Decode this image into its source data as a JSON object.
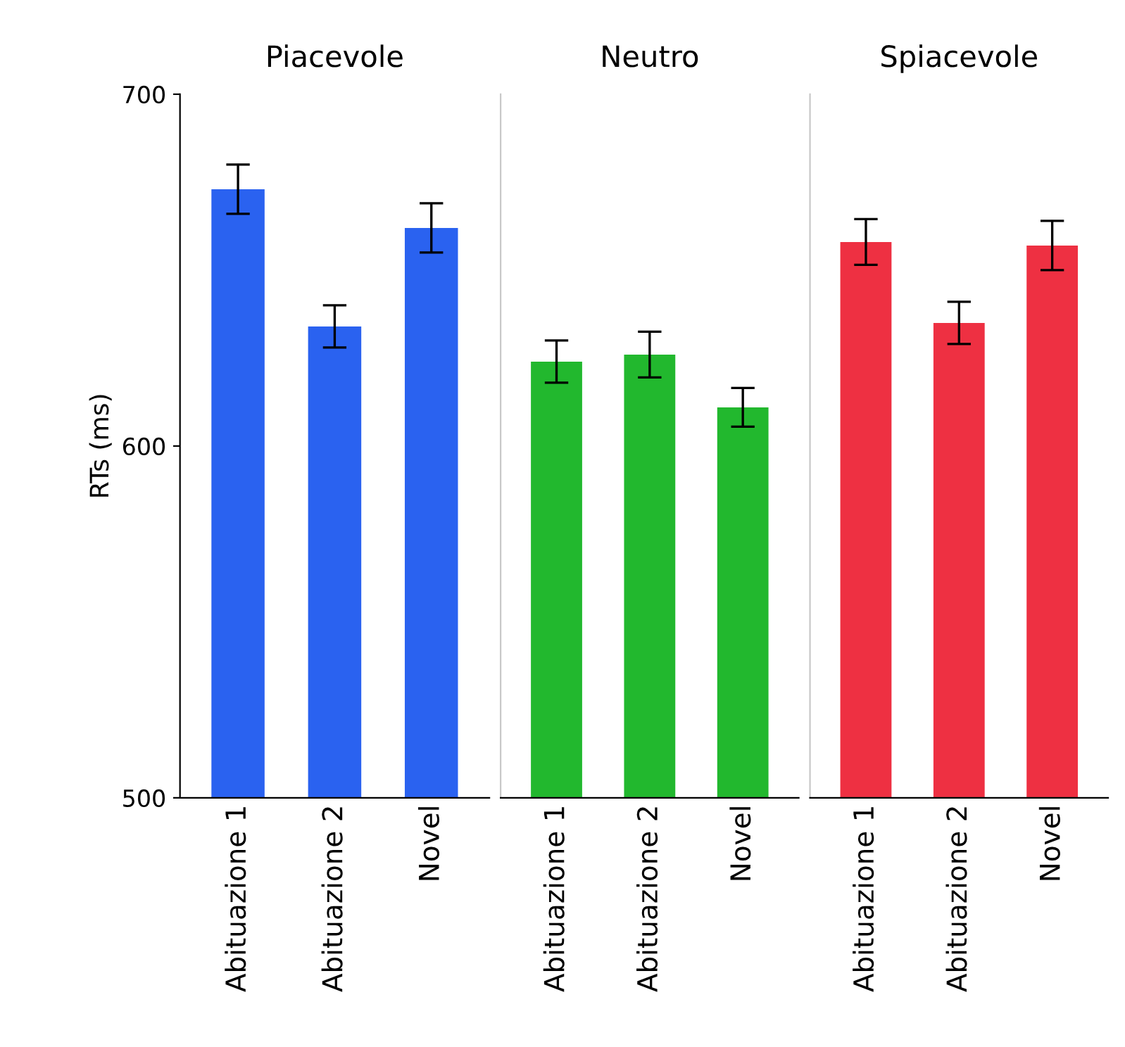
{
  "chart_data": [
    {
      "type": "bar",
      "title": "Piacevole",
      "ylabel": "RTs (ms)",
      "categories": [
        "Abituazione 1",
        "Abituazione 2",
        "Novel"
      ],
      "values": [
        673,
        634,
        662
      ],
      "errors": [
        7,
        6,
        7
      ],
      "color": "#2a62f0",
      "ylim": [
        500,
        700
      ],
      "yticks": [
        500,
        600,
        700
      ]
    },
    {
      "type": "bar",
      "title": "Neutro",
      "categories": [
        "Abituazione 1",
        "Abituazione 2",
        "Novel"
      ],
      "values": [
        624,
        626,
        611
      ],
      "errors": [
        6,
        6.5,
        5.5
      ],
      "color": "#22b82e",
      "ylim": [
        500,
        700
      ],
      "tick_labels": "x"
    },
    {
      "type": "bar",
      "title": "Spiacevole",
      "categories": [
        "Abituazione 1",
        "Abituazione 2",
        "Novel"
      ],
      "values": [
        658,
        635,
        657
      ],
      "errors": [
        6.5,
        6,
        7
      ],
      "color": "#ee3042",
      "ylim": [
        500,
        700
      ],
      "tick_labels": "x"
    }
  ]
}
